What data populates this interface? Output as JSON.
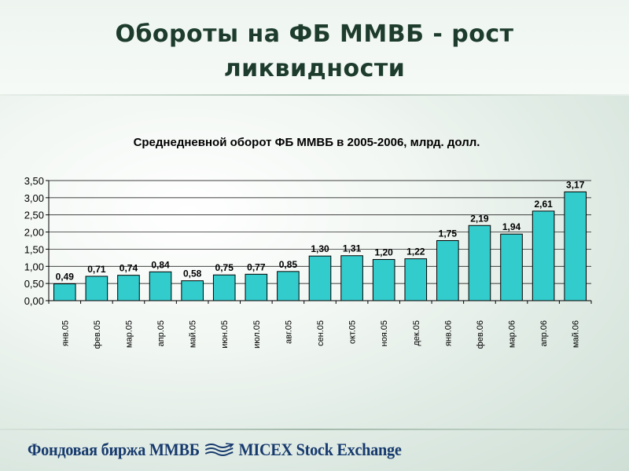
{
  "slide": {
    "title_line1": "Обороты на ФБ ММВБ - рост",
    "title_line2": "ликвидности"
  },
  "footer": {
    "left_text": "Фондовая биржа ММВБ",
    "right_text": "MICEX Stock Exchange",
    "logo_icon": "micex-logo-icon"
  },
  "chart_data": {
    "type": "bar",
    "title": "Среднедневной оборот ФБ ММВБ в  2005-2006, млрд. долл.",
    "categories": [
      "янв.05",
      "фев.05",
      "мар.05",
      "апр.05",
      "май.05",
      "июн.05",
      "июл.05",
      "авг.05",
      "сен.05",
      "окт.05",
      "ноя.05",
      "дек.05",
      "янв.06",
      "фев.06",
      "мар.06",
      "апр.06",
      "май.06"
    ],
    "values": [
      0.49,
      0.71,
      0.74,
      0.84,
      0.58,
      0.75,
      0.77,
      0.85,
      1.3,
      1.31,
      1.2,
      1.22,
      1.75,
      2.19,
      1.94,
      2.61,
      3.17
    ],
    "value_labels": [
      "0,49",
      "0,71",
      "0,74",
      "0,84",
      "0,58",
      "0,75",
      "0,77",
      "0,85",
      "1,30",
      "1,31",
      "1,20",
      "1,22",
      "1,75",
      "2,19",
      "1,94",
      "2,61",
      "3,17"
    ],
    "yticks": [
      "0,00",
      "0,50",
      "1,00",
      "1,50",
      "2,00",
      "2,50",
      "3,00",
      "3,50"
    ],
    "ylim": [
      0,
      3.5
    ],
    "grid": true,
    "legend": "none",
    "bar_color": "#33cccc",
    "bar_edge_color": "#000000"
  }
}
